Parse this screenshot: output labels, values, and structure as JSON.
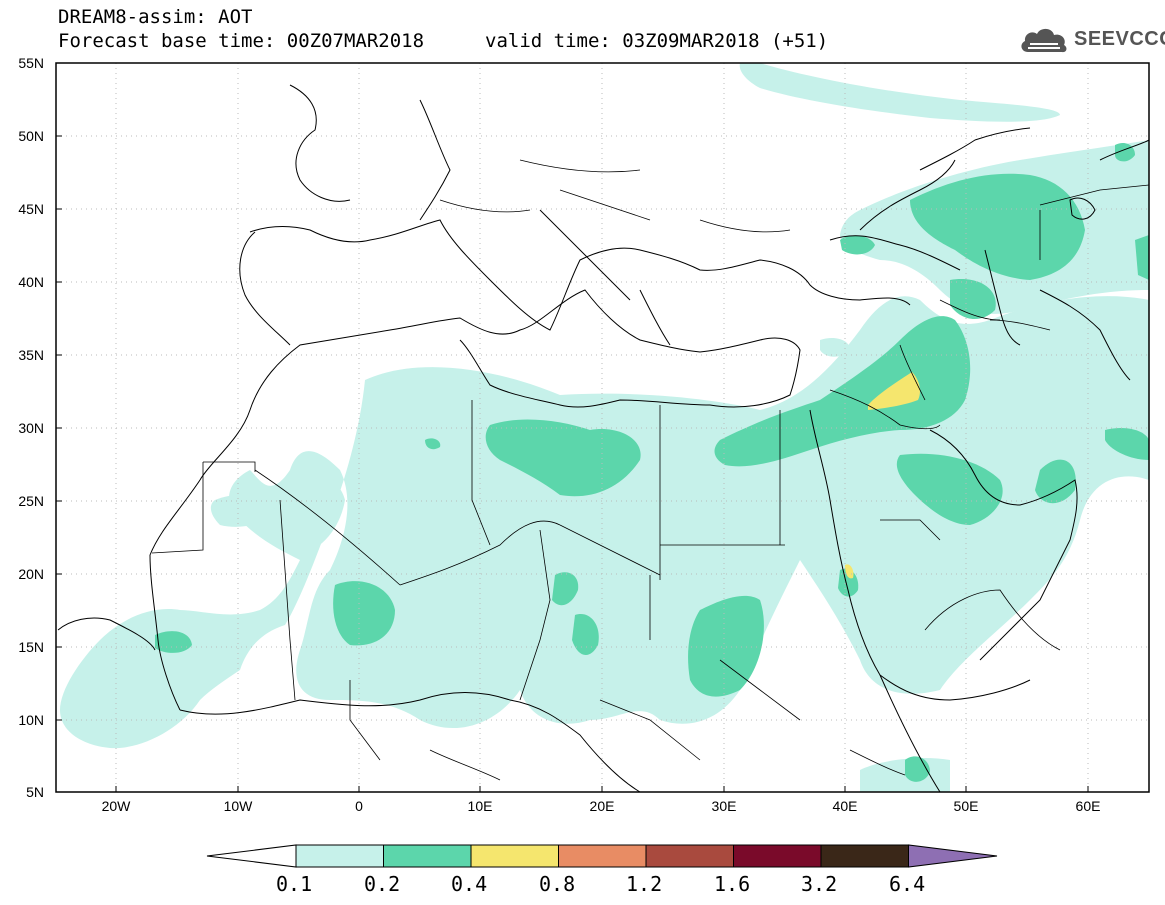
{
  "header": {
    "title": "DREAM8-assim: AOT",
    "base_time": "Forecast base time: 00Z07MAR2018",
    "valid_time": "valid time: 03Z09MAR2018 (+51)"
  },
  "logo": {
    "text": "SEEVCCC",
    "icon": "cloud-icon"
  },
  "axes": {
    "lat_labels": [
      "55N",
      "50N",
      "45N",
      "40N",
      "35N",
      "30N",
      "25N",
      "20N",
      "15N",
      "10N",
      "5N"
    ],
    "lon_labels": [
      "20W",
      "10W",
      "0",
      "10E",
      "20E",
      "30E",
      "40E",
      "50E",
      "60E"
    ]
  },
  "colorbar": {
    "labels": [
      "0.1",
      "0.2",
      "0.4",
      "0.8",
      "1.2",
      "1.6",
      "3.2",
      "6.4"
    ],
    "colors": [
      "#ffffff",
      "#c6f1ea",
      "#5cd6ab",
      "#f5e66e",
      "#e88c64",
      "#a94a3e",
      "#7a0a2a",
      "#3a2718",
      "#8e6fb3"
    ]
  },
  "map_colors": {
    "level1": "#c6f1ea",
    "level2": "#5cd6ab",
    "level3": "#f5e66e"
  }
}
